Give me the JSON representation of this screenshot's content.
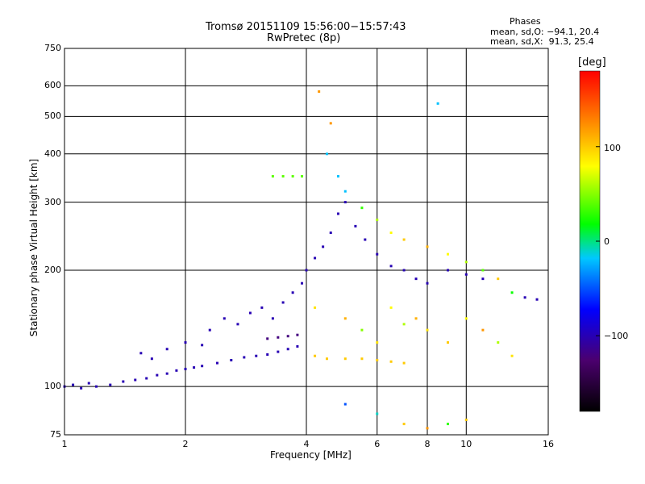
{
  "header": {
    "title_line1": "Tromsø 20151109 15:56:00−15:57:43",
    "title_line2": "RwPretec (8p)",
    "phases_title": "Phases",
    "phases_o": "mean, sd,O: −94.1, 20.4",
    "phases_x": "mean, sd,X:  91.3, 25.4"
  },
  "colorbar": {
    "label": "[deg]",
    "ticks": [
      "100",
      "0",
      "−100"
    ],
    "tick_values": [
      100,
      0,
      -100
    ],
    "range": [
      -180,
      180
    ]
  },
  "chart_data": {
    "type": "scatter",
    "xlabel": "Frequency [MHz]",
    "ylabel": "Stationary phase Virtual Height [km]",
    "x_scale": "log",
    "y_scale": "log",
    "xlim": [
      1,
      16
    ],
    "ylim": [
      75,
      750
    ],
    "x_ticks": [
      "1",
      "2",
      "4",
      "6",
      "8",
      "10",
      "16"
    ],
    "x_tick_values": [
      1,
      2,
      4,
      6,
      8,
      10,
      16
    ],
    "y_ticks": [
      "750",
      "600",
      "500",
      "400",
      "300",
      "200",
      "100",
      "75"
    ],
    "y_tick_values": [
      750,
      600,
      500,
      400,
      300,
      200,
      100,
      75
    ],
    "grid": true,
    "color_encoding": "phase [deg]",
    "series": [
      {
        "points": [
          [
            1.0,
            100,
            -100
          ],
          [
            1.05,
            101,
            -100
          ],
          [
            1.1,
            99,
            -100
          ],
          [
            1.15,
            102,
            -100
          ],
          [
            1.2,
            100,
            -100
          ],
          [
            1.3,
            101,
            -100
          ],
          [
            1.4,
            103,
            -100
          ],
          [
            1.5,
            104,
            -100
          ],
          [
            1.6,
            105,
            -100
          ],
          [
            1.7,
            107,
            -100
          ],
          [
            1.8,
            108,
            -100
          ],
          [
            1.9,
            110,
            -100
          ],
          [
            2.0,
            111,
            -100
          ],
          [
            2.1,
            112,
            -100
          ],
          [
            2.2,
            113,
            -100
          ],
          [
            2.4,
            115,
            -100
          ],
          [
            2.6,
            117,
            -100
          ],
          [
            2.8,
            119,
            -100
          ],
          [
            3.0,
            120,
            -100
          ],
          [
            3.2,
            121,
            -100
          ],
          [
            3.4,
            123,
            -100
          ],
          [
            3.6,
            125,
            -100
          ],
          [
            3.8,
            127,
            -100
          ]
        ]
      },
      {
        "points": [
          [
            1.55,
            122,
            -100
          ],
          [
            1.65,
            118,
            -100
          ],
          [
            1.8,
            125,
            -100
          ],
          [
            2.0,
            130,
            -100
          ],
          [
            2.2,
            128,
            -100
          ],
          [
            2.3,
            140,
            -100
          ],
          [
            2.5,
            150,
            -100
          ],
          [
            2.7,
            145,
            -100
          ],
          [
            2.9,
            155,
            -100
          ],
          [
            3.1,
            160,
            -100
          ],
          [
            3.3,
            150,
            -100
          ],
          [
            3.5,
            165,
            -100
          ],
          [
            3.7,
            175,
            -100
          ],
          [
            3.9,
            185,
            -100
          ],
          [
            4.0,
            200,
            -100
          ],
          [
            4.2,
            215,
            -100
          ],
          [
            4.4,
            230,
            -100
          ],
          [
            4.6,
            250,
            -100
          ],
          [
            4.8,
            280,
            -100
          ],
          [
            5.0,
            300,
            -100
          ],
          [
            5.3,
            260,
            -100
          ],
          [
            5.6,
            240,
            -100
          ],
          [
            6.0,
            220,
            -100
          ],
          [
            6.5,
            205,
            -100
          ],
          [
            7.0,
            200,
            -100
          ],
          [
            7.5,
            190,
            -100
          ],
          [
            8.0,
            185,
            -100
          ],
          [
            9.0,
            200,
            -100
          ],
          [
            10.0,
            195,
            -100
          ],
          [
            11.0,
            190,
            -100
          ]
        ]
      },
      {
        "points": [
          [
            3.2,
            133,
            -120
          ],
          [
            3.4,
            134,
            -120
          ],
          [
            3.6,
            135,
            -120
          ],
          [
            3.8,
            136,
            -120
          ]
        ]
      },
      {
        "points": [
          [
            4.2,
            120,
            100
          ],
          [
            4.5,
            118,
            100
          ],
          [
            5.0,
            118,
            100
          ],
          [
            5.5,
            118,
            100
          ],
          [
            6.0,
            117,
            100
          ],
          [
            6.5,
            116,
            100
          ],
          [
            7.0,
            115,
            100
          ]
        ]
      },
      {
        "points": [
          [
            3.3,
            350,
            40
          ],
          [
            3.5,
            350,
            40
          ],
          [
            3.7,
            350,
            40
          ],
          [
            3.9,
            350,
            40
          ]
        ]
      },
      {
        "points": [
          [
            4.5,
            400,
            -20
          ],
          [
            4.8,
            350,
            -20
          ],
          [
            5.0,
            320,
            -20
          ],
          [
            5.5,
            290,
            30
          ],
          [
            6.0,
            270,
            60
          ],
          [
            6.5,
            250,
            80
          ],
          [
            7.0,
            240,
            100
          ],
          [
            8.0,
            230,
            110
          ],
          [
            9.0,
            220,
            80
          ],
          [
            10.0,
            210,
            60
          ],
          [
            11.0,
            200,
            40
          ],
          [
            12.0,
            190,
            100
          ],
          [
            13.0,
            175,
            20
          ],
          [
            14.0,
            170,
            -100
          ],
          [
            15.0,
            168,
            -100
          ]
        ]
      },
      {
        "points": [
          [
            4.2,
            160,
            90
          ],
          [
            5.0,
            150,
            110
          ],
          [
            5.5,
            140,
            50
          ],
          [
            6.0,
            130,
            90
          ],
          [
            6.5,
            160,
            80
          ],
          [
            7.0,
            145,
            60
          ],
          [
            7.5,
            150,
            110
          ],
          [
            8.0,
            140,
            90
          ],
          [
            9.0,
            130,
            100
          ],
          [
            10.0,
            150,
            80
          ],
          [
            11.0,
            140,
            120
          ],
          [
            12.0,
            130,
            60
          ],
          [
            13.0,
            120,
            90
          ]
        ]
      },
      {
        "points": [
          [
            4.3,
            580,
            120
          ],
          [
            4.6,
            480,
            120
          ],
          [
            8.5,
            540,
            -20
          ],
          [
            5.0,
            90,
            -50
          ],
          [
            6.0,
            85,
            -10
          ],
          [
            7.0,
            80,
            100
          ],
          [
            8.0,
            78,
            120
          ],
          [
            9.0,
            80,
            30
          ],
          [
            10.0,
            82,
            100
          ]
        ]
      }
    ]
  }
}
